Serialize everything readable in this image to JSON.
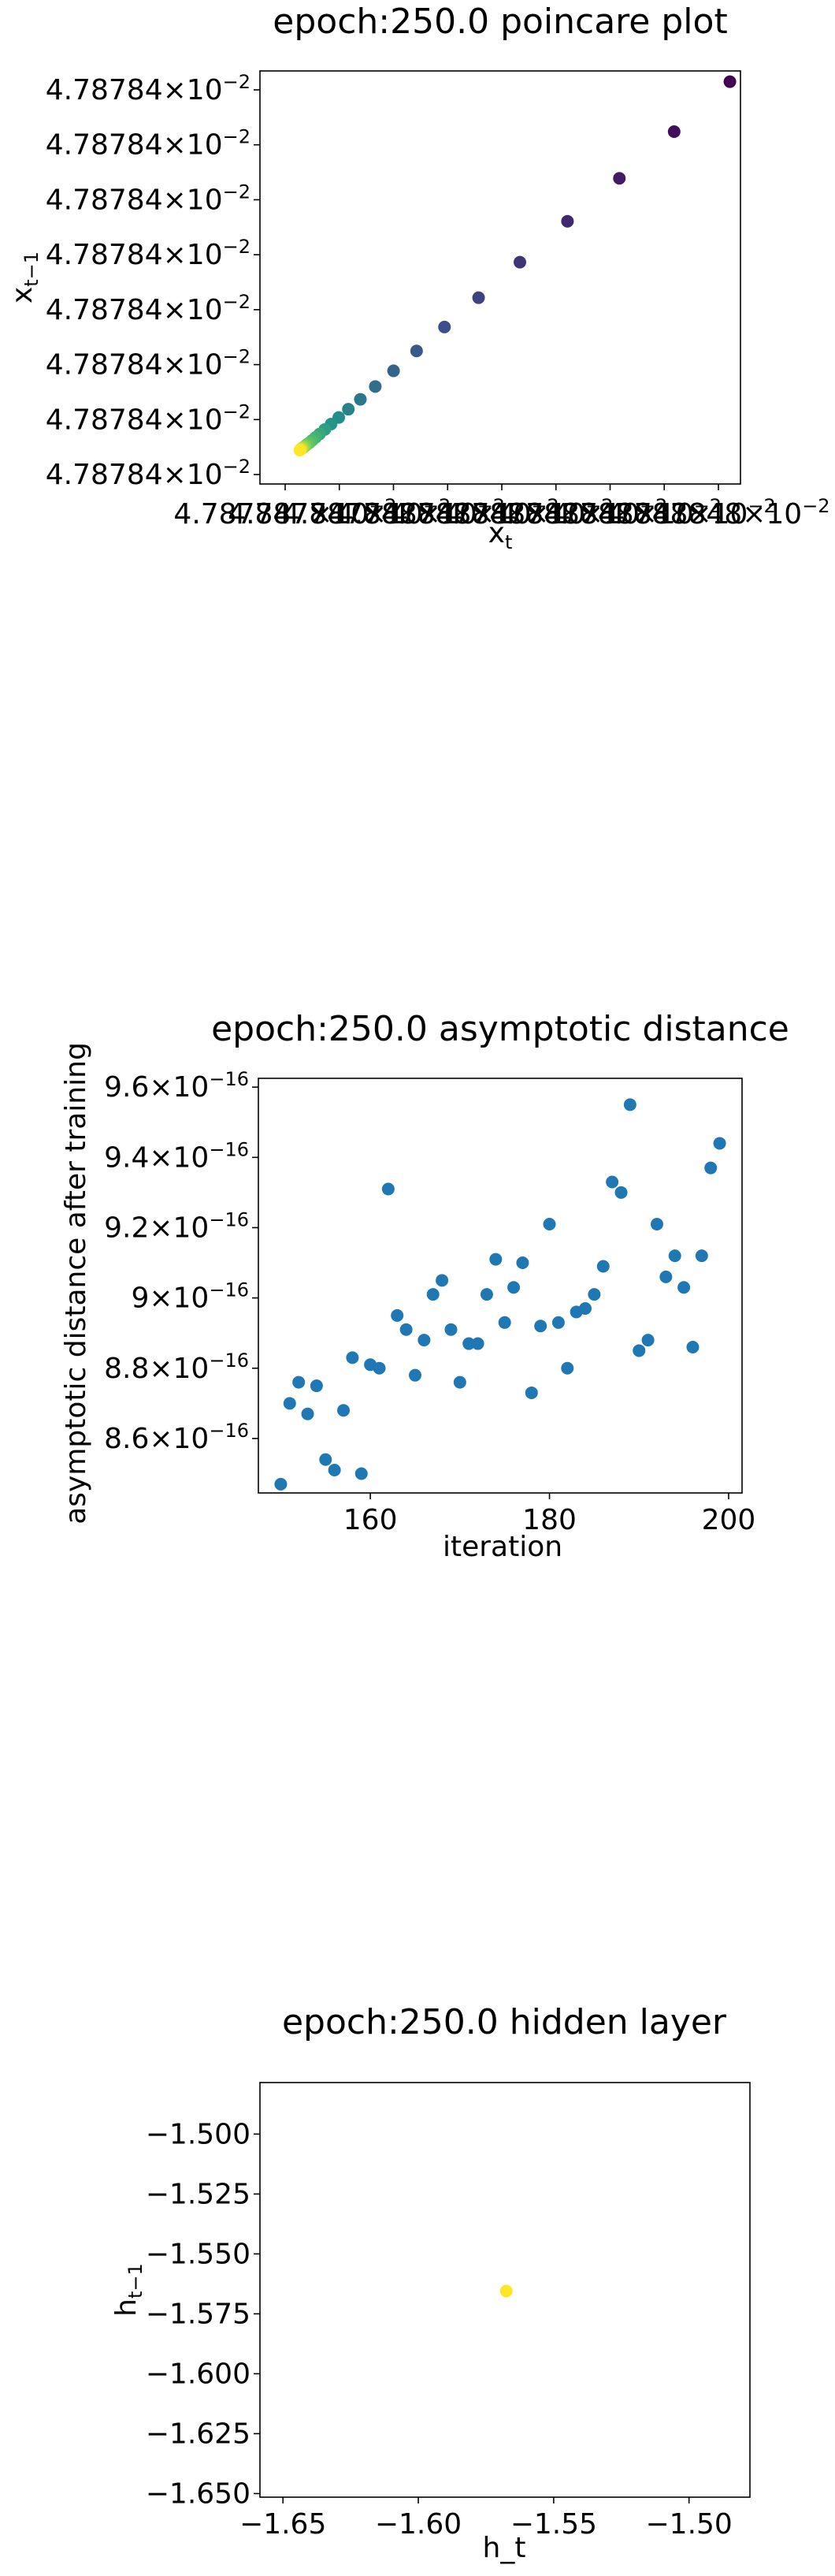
{
  "chart_data": [
    {
      "type": "scatter",
      "title": "epoch:250.0 poincare plot",
      "xlabel_main": "x",
      "xlabel_sub": "t",
      "ylabel_main": "x",
      "ylabel_sub": "t−1",
      "colormap": [
        "#440154",
        "#3b528b",
        "#21918c",
        "#5ec962",
        "#fde725"
      ],
      "y_tick_labels": [
        "4.78784",
        "4.78784",
        "4.78784",
        "4.78784",
        "4.78784",
        "4.78784",
        "4.78784",
        "4.78784"
      ],
      "x_tick_labels": [
        "4.787847",
        "4.787847",
        "4.787848",
        "4.787848",
        "4.787848",
        "4.787848",
        "4.787848",
        "4.787848",
        "4.787848"
      ],
      "tick_multiplier": "×10",
      "tick_exponent": "−2",
      "xlim": [
        0,
        1
      ],
      "ylim": [
        0,
        1
      ],
      "points": [
        {
          "x": 0.978,
          "y": 0.974,
          "c": 0.0
        },
        {
          "x": 0.862,
          "y": 0.853,
          "c": 0.04
        },
        {
          "x": 0.748,
          "y": 0.74,
          "c": 0.08
        },
        {
          "x": 0.64,
          "y": 0.636,
          "c": 0.12
        },
        {
          "x": 0.541,
          "y": 0.537,
          "c": 0.16
        },
        {
          "x": 0.455,
          "y": 0.451,
          "c": 0.2
        },
        {
          "x": 0.384,
          "y": 0.38,
          "c": 0.24
        },
        {
          "x": 0.326,
          "y": 0.322,
          "c": 0.28
        },
        {
          "x": 0.278,
          "y": 0.274,
          "c": 0.32
        },
        {
          "x": 0.24,
          "y": 0.236,
          "c": 0.36
        },
        {
          "x": 0.209,
          "y": 0.205,
          "c": 0.4
        },
        {
          "x": 0.184,
          "y": 0.181,
          "c": 0.44
        },
        {
          "x": 0.164,
          "y": 0.161,
          "c": 0.48
        },
        {
          "x": 0.148,
          "y": 0.145,
          "c": 0.52
        },
        {
          "x": 0.135,
          "y": 0.132,
          "c": 0.56
        },
        {
          "x": 0.124,
          "y": 0.121,
          "c": 0.6
        },
        {
          "x": 0.116,
          "y": 0.113,
          "c": 0.64
        },
        {
          "x": 0.109,
          "y": 0.106,
          "c": 0.68
        },
        {
          "x": 0.103,
          "y": 0.1,
          "c": 0.72
        },
        {
          "x": 0.098,
          "y": 0.096,
          "c": 0.76
        },
        {
          "x": 0.094,
          "y": 0.092,
          "c": 0.8
        },
        {
          "x": 0.091,
          "y": 0.089,
          "c": 0.84
        },
        {
          "x": 0.088,
          "y": 0.087,
          "c": 0.88
        },
        {
          "x": 0.086,
          "y": 0.085,
          "c": 0.92
        },
        {
          "x": 0.084,
          "y": 0.083,
          "c": 0.96
        },
        {
          "x": 0.083,
          "y": 0.082,
          "c": 1.0
        }
      ]
    },
    {
      "type": "scatter",
      "title": "epoch:250.0 asymptotic distance",
      "xlabel": "iteration",
      "ylabel": "asymptotic distance after training",
      "color": "#1f77b4",
      "xlim": [
        147.5,
        201.5
      ],
      "ylim": [
        8.445,
        9.625
      ],
      "x_ticks": [
        160,
        180,
        200
      ],
      "y_ticks": [
        {
          "value": 8.6,
          "mantissa": "8.6",
          "exp": "−16"
        },
        {
          "value": 8.8,
          "mantissa": "8.8",
          "exp": "−16"
        },
        {
          "value": 9.0,
          "mantissa": "9",
          "exp": "−16"
        },
        {
          "value": 9.2,
          "mantissa": "9.2",
          "exp": "−16"
        },
        {
          "value": 9.4,
          "mantissa": "9.4",
          "exp": "−16"
        },
        {
          "value": 9.6,
          "mantissa": "9.6",
          "exp": "−16"
        }
      ],
      "tick_multiplier": "×10",
      "points": [
        {
          "x": 150,
          "y": 8.47
        },
        {
          "x": 151,
          "y": 8.7
        },
        {
          "x": 152,
          "y": 8.76
        },
        {
          "x": 153,
          "y": 8.67
        },
        {
          "x": 154,
          "y": 8.75
        },
        {
          "x": 155,
          "y": 8.54
        },
        {
          "x": 156,
          "y": 8.51
        },
        {
          "x": 157,
          "y": 8.68
        },
        {
          "x": 158,
          "y": 8.83
        },
        {
          "x": 159,
          "y": 8.5
        },
        {
          "x": 160,
          "y": 8.81
        },
        {
          "x": 161,
          "y": 8.8
        },
        {
          "x": 162,
          "y": 9.31
        },
        {
          "x": 163,
          "y": 8.95
        },
        {
          "x": 164,
          "y": 8.91
        },
        {
          "x": 165,
          "y": 8.78
        },
        {
          "x": 166,
          "y": 8.88
        },
        {
          "x": 167,
          "y": 9.01
        },
        {
          "x": 168,
          "y": 9.05
        },
        {
          "x": 169,
          "y": 8.91
        },
        {
          "x": 170,
          "y": 8.76
        },
        {
          "x": 171,
          "y": 8.87
        },
        {
          "x": 172,
          "y": 8.87
        },
        {
          "x": 173,
          "y": 9.01
        },
        {
          "x": 174,
          "y": 9.11
        },
        {
          "x": 175,
          "y": 8.93
        },
        {
          "x": 176,
          "y": 9.03
        },
        {
          "x": 177,
          "y": 9.1
        },
        {
          "x": 178,
          "y": 8.73
        },
        {
          "x": 179,
          "y": 8.92
        },
        {
          "x": 180,
          "y": 9.21
        },
        {
          "x": 181,
          "y": 8.93
        },
        {
          "x": 182,
          "y": 8.8
        },
        {
          "x": 183,
          "y": 8.96
        },
        {
          "x": 184,
          "y": 8.97
        },
        {
          "x": 185,
          "y": 9.01
        },
        {
          "x": 186,
          "y": 9.09
        },
        {
          "x": 187,
          "y": 9.33
        },
        {
          "x": 188,
          "y": 9.3
        },
        {
          "x": 189,
          "y": 9.55
        },
        {
          "x": 190,
          "y": 8.85
        },
        {
          "x": 191,
          "y": 8.88
        },
        {
          "x": 192,
          "y": 9.21
        },
        {
          "x": 193,
          "y": 9.06
        },
        {
          "x": 194,
          "y": 9.12
        },
        {
          "x": 195,
          "y": 9.03
        },
        {
          "x": 196,
          "y": 8.86
        },
        {
          "x": 197,
          "y": 9.12
        },
        {
          "x": 198,
          "y": 9.37
        },
        {
          "x": 199,
          "y": 9.44
        }
      ]
    },
    {
      "type": "scatter",
      "title": "epoch:250.0 hidden layer",
      "xlabel": "h_t",
      "ylabel_main": "h",
      "ylabel_sub": "t−1",
      "color": "#fde725",
      "xlim": [
        -1.6585,
        -1.4775
      ],
      "ylim": [
        -1.6515,
        -1.4785
      ],
      "x_ticks": [
        {
          "value": -1.65,
          "label": "−1.65"
        },
        {
          "value": -1.6,
          "label": "−1.60"
        },
        {
          "value": -1.55,
          "label": "−1.55"
        },
        {
          "value": -1.5,
          "label": "−1.50"
        }
      ],
      "y_ticks": [
        {
          "value": -1.5,
          "label": "−1.500"
        },
        {
          "value": -1.525,
          "label": "−1.525"
        },
        {
          "value": -1.55,
          "label": "−1.550"
        },
        {
          "value": -1.575,
          "label": "−1.575"
        },
        {
          "value": -1.6,
          "label": "−1.600"
        },
        {
          "value": -1.625,
          "label": "−1.625"
        },
        {
          "value": -1.65,
          "label": "−1.650"
        }
      ],
      "points": [
        {
          "x": -1.5675,
          "y": -1.5655
        }
      ]
    }
  ]
}
